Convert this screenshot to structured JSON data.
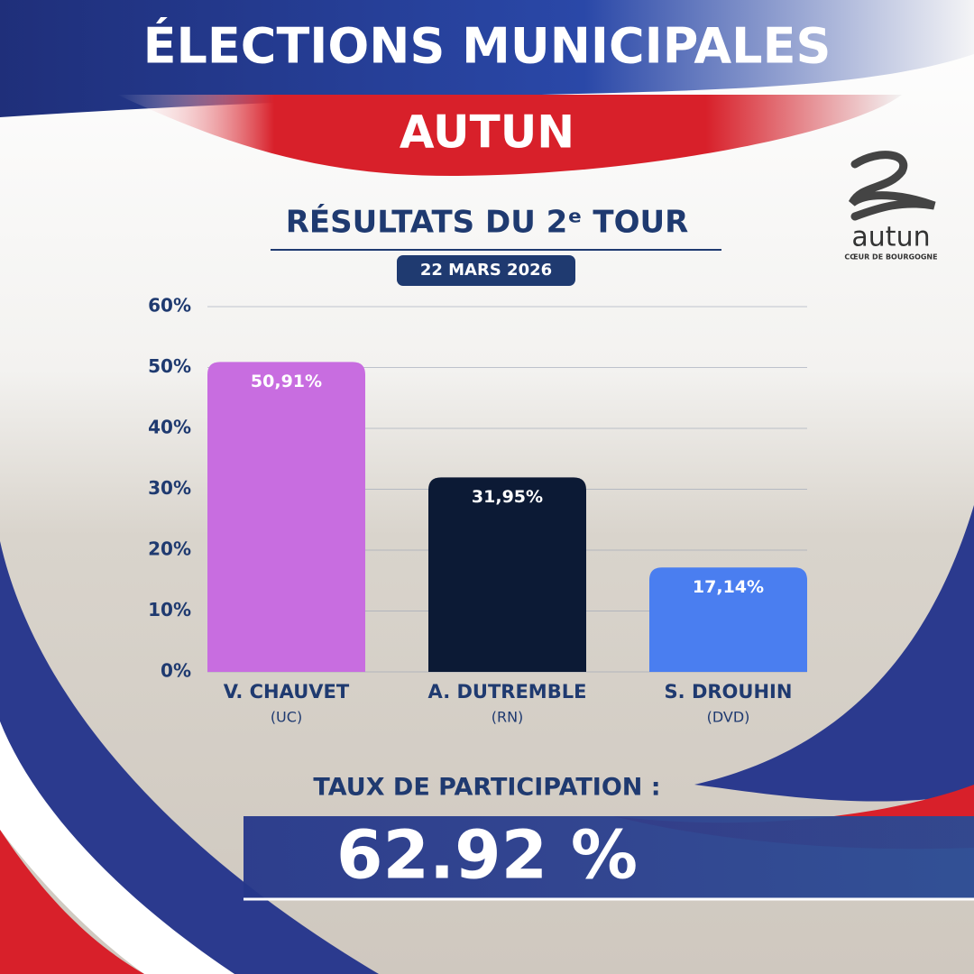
{
  "header": {
    "title": "ÉLECTIONS MUNICIPALES",
    "city": "AUTUN"
  },
  "logo": {
    "name": "autun",
    "tagline": "CŒUR DE BOURGOGNE"
  },
  "chart_data": {
    "type": "bar",
    "title": "RÉSULTATS DU 2ᵉ TOUR",
    "subtitle": "22 MARS 2026",
    "categories": [
      "V. CHAUVET",
      "A. DUTREMBLE",
      "S. DROUHIN"
    ],
    "parties": [
      "(UC)",
      "(RN)",
      "(DVD)"
    ],
    "values": [
      50.91,
      31.95,
      17.14
    ],
    "value_labels": [
      "50,91%",
      "31,95%",
      "17,14%"
    ],
    "colors": [
      "#c86de0",
      "#0c1a35",
      "#4a7ef0"
    ],
    "ylim": [
      0,
      60
    ],
    "yticks": [
      {
        "value": 0,
        "label": "0%"
      },
      {
        "value": 10,
        "label": "10%"
      },
      {
        "value": 20,
        "label": "20%"
      },
      {
        "value": 30,
        "label": "30%"
      },
      {
        "value": 40,
        "label": "40%"
      },
      {
        "value": 50,
        "label": "50%"
      },
      {
        "value": 60,
        "label": "60%"
      }
    ],
    "grid": true
  },
  "participation": {
    "label": "TAUX DE PARTICIPATION :",
    "value": "62.92 %"
  }
}
